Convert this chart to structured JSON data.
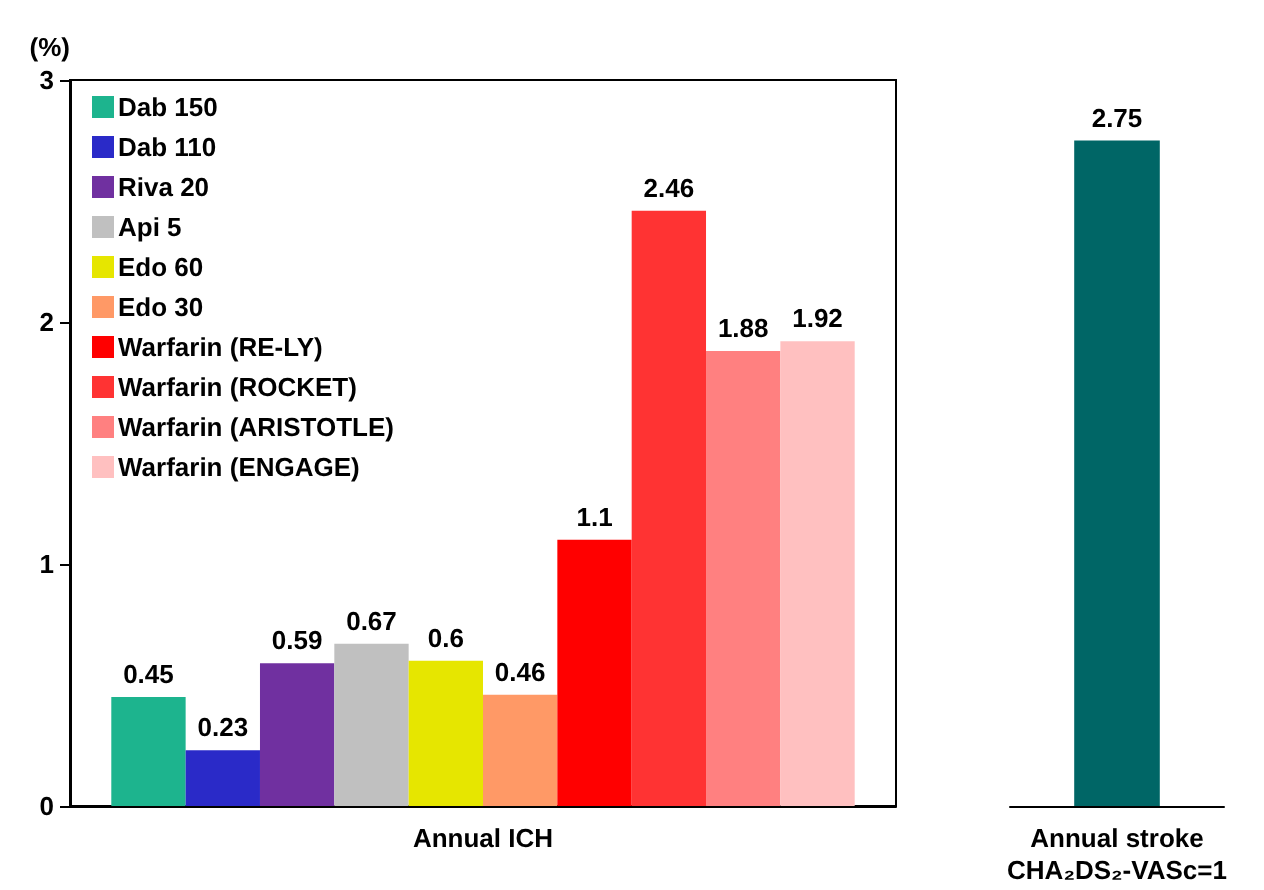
{
  "chart_data": [
    {
      "type": "bar",
      "ylabel": "(%)",
      "categories": [
        "Annual ICH"
      ],
      "ylim": [
        0,
        3
      ],
      "yticks": [
        0,
        1,
        2,
        3
      ],
      "data_labels": true,
      "legend": "top left",
      "grid": false,
      "series": [
        {
          "name": "Dab 150",
          "color": "#1db48e",
          "values": [
            0.45
          ]
        },
        {
          "name": "Dab 110",
          "color": "#2a2ac8",
          "values": [
            0.23
          ]
        },
        {
          "name": "Riva 20",
          "color": "#7030a0",
          "values": [
            0.59
          ]
        },
        {
          "name": "Api 5",
          "color": "#c0c0c0",
          "values": [
            0.67
          ]
        },
        {
          "name": "Edo 60",
          "color": "#e6e600",
          "values": [
            0.6
          ]
        },
        {
          "name": "Edo 30",
          "color": "#ff9966",
          "values": [
            0.46
          ]
        },
        {
          "name": "Warfarin (RE-LY)",
          "color": "#ff0000",
          "values": [
            1.1
          ]
        },
        {
          "name": "Warfarin (ROCKET)",
          "color": "#ff3333",
          "values": [
            2.46
          ]
        },
        {
          "name": "Warfarin (ARISTOTLE)",
          "color": "#ff8080",
          "values": [
            1.88
          ]
        },
        {
          "name": "Warfarin (ENGAGE)",
          "color": "#ffc0c0",
          "values": [
            1.92
          ]
        }
      ]
    },
    {
      "type": "bar",
      "categories": [
        "Annual stroke CHA₂DS₂-VASc=1"
      ],
      "ylim": [
        0,
        3
      ],
      "data_labels": true,
      "series": [
        {
          "color": "#006666",
          "values": [
            2.75
          ]
        }
      ]
    }
  ]
}
